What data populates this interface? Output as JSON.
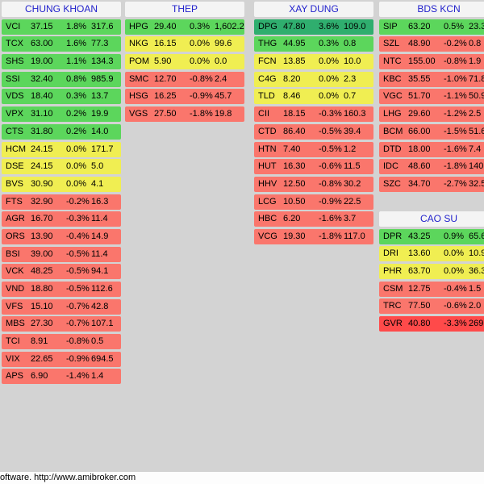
{
  "footer": {
    "text": "oftware. http://www.amibroker.com"
  },
  "colors": {
    "up": "#5cd65c",
    "up_strong": "#2fae6e",
    "flat": "#f0ee52",
    "down": "#fa766c",
    "down_strong": "#ff4a4a"
  },
  "groups": [
    {
      "title": "CHUNG KHOAN",
      "rows": [
        [
          "VCI",
          "37.15",
          "1.8%",
          "317.6",
          "up"
        ],
        [
          "TCX",
          "63.00",
          "1.6%",
          "77.3",
          "up"
        ],
        [
          "SHS",
          "19.00",
          "1.1%",
          "134.3",
          "up"
        ],
        [
          "SSI",
          "32.40",
          "0.8%",
          "985.9",
          "up"
        ],
        [
          "VDS",
          "18.40",
          "0.3%",
          "13.7",
          "up"
        ],
        [
          "VPX",
          "31.10",
          "0.2%",
          "19.9",
          "up"
        ],
        [
          "CTS",
          "31.80",
          "0.2%",
          "14.0",
          "up"
        ],
        [
          "HCM",
          "24.15",
          "0.0%",
          "171.7",
          "flat"
        ],
        [
          "DSE",
          "24.15",
          "0.0%",
          "5.0",
          "flat"
        ],
        [
          "BVS",
          "30.90",
          "0.0%",
          "4.1",
          "flat"
        ],
        [
          "FTS",
          "32.90",
          "-0.2%",
          "16.3",
          "down"
        ],
        [
          "AGR",
          "16.70",
          "-0.3%",
          "11.4",
          "down"
        ],
        [
          "ORS",
          "13.90",
          "-0.4%",
          "14.9",
          "down"
        ],
        [
          "BSI",
          "39.00",
          "-0.5%",
          "11.4",
          "down"
        ],
        [
          "VCK",
          "48.25",
          "-0.5%",
          "94.1",
          "down"
        ],
        [
          "VND",
          "18.80",
          "-0.5%",
          "112.6",
          "down"
        ],
        [
          "VFS",
          "15.10",
          "-0.7%",
          "42.8",
          "down"
        ],
        [
          "MBS",
          "27.30",
          "-0.7%",
          "107.1",
          "down"
        ],
        [
          "TCI",
          "8.91",
          "-0.8%",
          "0.5",
          "down"
        ],
        [
          "VIX",
          "22.65",
          "-0.9%",
          "694.5",
          "down"
        ],
        [
          "APS",
          "6.90",
          "-1.4%",
          "1.4",
          "down"
        ]
      ]
    },
    {
      "title": "THEP",
      "rows": [
        [
          "HPG",
          "29.40",
          "0.3%",
          "1,602.2",
          "up"
        ],
        [
          "NKG",
          "16.15",
          "0.0%",
          "99.6",
          "flat"
        ],
        [
          "POM",
          "5.90",
          "0.0%",
          "0.0",
          "flat"
        ],
        [
          "SMC",
          "12.70",
          "-0.8%",
          "2.4",
          "down"
        ],
        [
          "HSG",
          "16.25",
          "-0.9%",
          "45.7",
          "down"
        ],
        [
          "VGS",
          "27.50",
          "-1.8%",
          "19.8",
          "down"
        ]
      ]
    },
    {
      "title": "XAY DUNG",
      "rows": [
        [
          "DPG",
          "47.80",
          "3.6%",
          "109.0",
          "up_strong"
        ],
        [
          "THG",
          "44.95",
          "0.3%",
          "0.8",
          "up"
        ],
        [
          "FCN",
          "13.85",
          "0.0%",
          "10.0",
          "flat"
        ],
        [
          "C4G",
          "8.20",
          "0.0%",
          "2.3",
          "flat"
        ],
        [
          "TLD",
          "8.46",
          "0.0%",
          "0.7",
          "flat"
        ],
        [
          "CII",
          "18.15",
          "-0.3%",
          "160.3",
          "down"
        ],
        [
          "CTD",
          "86.40",
          "-0.5%",
          "39.4",
          "down"
        ],
        [
          "HTN",
          "7.40",
          "-0.5%",
          "1.2",
          "down"
        ],
        [
          "HUT",
          "16.30",
          "-0.6%",
          "11.5",
          "down"
        ],
        [
          "HHV",
          "12.50",
          "-0.8%",
          "30.2",
          "down"
        ],
        [
          "LCG",
          "10.50",
          "-0.9%",
          "22.5",
          "down"
        ],
        [
          "HBC",
          "6.20",
          "-1.6%",
          "3.7",
          "down"
        ],
        [
          "VCG",
          "19.30",
          "-1.8%",
          "117.0",
          "down"
        ]
      ]
    },
    {
      "title": "BDS KCN",
      "rows": [
        [
          "SIP",
          "63.20",
          "0.5%",
          "23.3",
          "up"
        ],
        [
          "SZL",
          "48.90",
          "-0.2%",
          "0.8",
          "down"
        ],
        [
          "NTC",
          "155.00",
          "-0.8%",
          "1.9",
          "down"
        ],
        [
          "KBC",
          "35.55",
          "-1.0%",
          "71.8",
          "down"
        ],
        [
          "VGC",
          "51.70",
          "-1.1%",
          "50.9",
          "down"
        ],
        [
          "LHG",
          "29.60",
          "-1.2%",
          "2.5",
          "down"
        ],
        [
          "BCM",
          "66.00",
          "-1.5%",
          "51.6",
          "down"
        ],
        [
          "DTD",
          "18.00",
          "-1.6%",
          "7.4",
          "down"
        ],
        [
          "IDC",
          "48.60",
          "-1.8%",
          "140",
          "down"
        ],
        [
          "SZC",
          "34.70",
          "-2.7%",
          "32.5",
          "down"
        ]
      ]
    },
    {
      "title": "CAO SU",
      "rows": [
        [
          "DPR",
          "43.25",
          "0.9%",
          "65.6",
          "up"
        ],
        [
          "DRI",
          "13.60",
          "0.0%",
          "10.9",
          "flat"
        ],
        [
          "PHR",
          "63.70",
          "0.0%",
          "36.3",
          "flat"
        ],
        [
          "CSM",
          "12.75",
          "-0.4%",
          "1.5",
          "down"
        ],
        [
          "TRC",
          "77.50",
          "-0.6%",
          "2.0",
          "down"
        ],
        [
          "GVR",
          "40.80",
          "-3.3%",
          "269",
          "down_strong"
        ]
      ]
    }
  ]
}
